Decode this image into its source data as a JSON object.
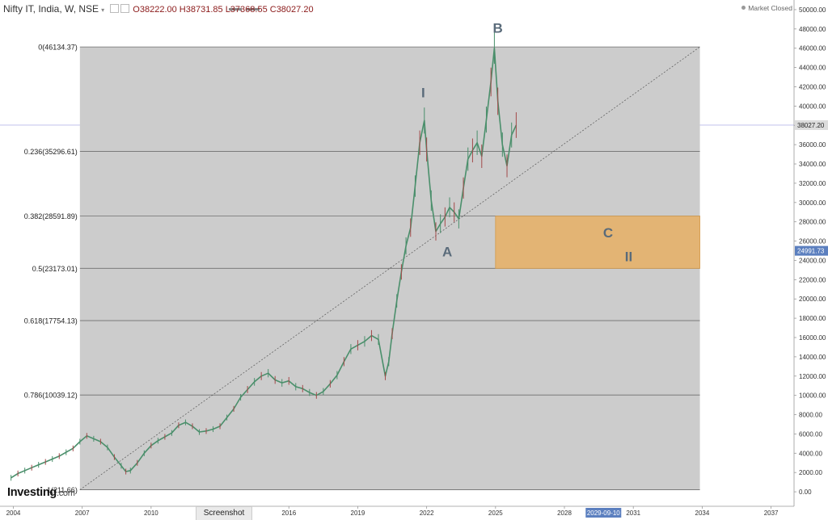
{
  "header": {
    "symbol": "Nifty IT, India, W, NSE",
    "caret": "▾",
    "open": "O38222.00",
    "high": "H38731.85",
    "low": "L37368.55",
    "close": "C38027.20"
  },
  "status": {
    "market": "Market Closed"
  },
  "brand": {
    "name": "Investing",
    "suffix": ".com"
  },
  "toolbar": {
    "screenshot_label": "Screenshot"
  },
  "colors": {
    "fib_region": "#cccccc",
    "zone_fill": "#e5b16a",
    "price_tag": "#5b7fbf",
    "label_text": "#5a6b7a",
    "candle": "#4a8f6b"
  },
  "chart_data": {
    "type": "line",
    "title": "Nifty IT, India, W, NSE",
    "x_range": [
      "2003-06",
      "2038-01"
    ],
    "ylim": [
      -1500,
      51000
    ],
    "y_ticks": [
      0,
      2000,
      4000,
      6000,
      8000,
      10000,
      12000,
      14000,
      16000,
      18000,
      20000,
      22000,
      24000,
      26000,
      28000,
      30000,
      32000,
      34000,
      36000,
      38000,
      40000,
      42000,
      44000,
      46000,
      48000,
      50000
    ],
    "y_tick_labels": [
      "0.00",
      "2000.00",
      "4000.00",
      "6000.00",
      "8000.00",
      "10000.00",
      "12000.00",
      "14000.00",
      "16000.00",
      "18000.00",
      "20000.00",
      "22000.00",
      "24000.00",
      "26000.00",
      "28000.00",
      "30000.00",
      "32000.00",
      "34000.00",
      "36000.00",
      "38000.00",
      "40000.00",
      "42000.00",
      "44000.00",
      "46000.00",
      "48000.00",
      "50000.00"
    ],
    "x_ticks": [
      {
        "label": "2004",
        "t": 2004.0
      },
      {
        "label": "2007",
        "t": 2007.0
      },
      {
        "label": "2010",
        "t": 2010.0
      },
      {
        "label": "2013",
        "t": 2013.0
      },
      {
        "label": "2016",
        "t": 2016.0
      },
      {
        "label": "2019",
        "t": 2019.0
      },
      {
        "label": "2022",
        "t": 2022.0
      },
      {
        "label": "2025",
        "t": 2025.0
      },
      {
        "label": "2028",
        "t": 2028.0
      },
      {
        "label": "2031",
        "t": 2031.0
      },
      {
        "label": "2034",
        "t": 2034.0
      },
      {
        "label": "2037",
        "t": 2037.0
      }
    ],
    "cursor_date": "2029-09-10",
    "cursor_t": 2029.7,
    "last_price": {
      "value": 38027.2,
      "label": "38027.20"
    },
    "crosshair_price": {
      "value": 24991.73,
      "label": "24991.73"
    },
    "series": [
      {
        "t": [
          2003.9,
          2004.2,
          2004.5,
          2004.8,
          2005.1,
          2005.4,
          2005.7,
          2006.0,
          2006.3,
          2006.6,
          2006.9,
          2007.2,
          2007.5,
          2007.8,
          2008.1,
          2008.4,
          2008.7,
          2008.9,
          2009.1,
          2009.4,
          2009.7,
          2010.0,
          2010.3,
          2010.6,
          2010.9,
          2011.2,
          2011.5,
          2011.8,
          2012.1,
          2012.4,
          2012.7,
          2013.0,
          2013.3,
          2013.6,
          2013.9,
          2014.2,
          2014.5,
          2014.8,
          2015.1,
          2015.4,
          2015.7,
          2016.0,
          2016.3,
          2016.6,
          2016.9,
          2017.2,
          2017.5,
          2017.8,
          2018.1,
          2018.4,
          2018.7,
          2019.0,
          2019.3,
          2019.6,
          2019.9,
          2020.2,
          2020.35,
          2020.5,
          2020.7,
          2020.9,
          2021.1,
          2021.3,
          2021.5,
          2021.7,
          2021.9,
          2022.0,
          2022.2,
          2022.4,
          2022.6,
          2022.8,
          2023.0,
          2023.2,
          2023.4,
          2023.6,
          2023.8,
          2024.0,
          2024.2,
          2024.4,
          2024.6,
          2024.8,
          2024.95,
          2025.1,
          2025.3,
          2025.5,
          2025.7,
          2025.9
        ],
        "y": [
          1450,
          1900,
          2200,
          2500,
          2800,
          3100,
          3400,
          3700,
          4100,
          4500,
          5200,
          5800,
          5500,
          5200,
          4600,
          3600,
          2700,
          2100,
          2200,
          3000,
          4000,
          4800,
          5300,
          5700,
          6100,
          6900,
          7200,
          6800,
          6200,
          6300,
          6500,
          6800,
          7700,
          8600,
          9800,
          10600,
          11400,
          12000,
          12300,
          11600,
          11300,
          11500,
          10900,
          10700,
          10300,
          10000,
          10400,
          11200,
          12100,
          13500,
          14800,
          15200,
          15600,
          16200,
          15800,
          12000,
          13500,
          16400,
          19800,
          22800,
          25500,
          27400,
          31700,
          36200,
          38500,
          35500,
          30200,
          27000,
          27800,
          28500,
          29500,
          29000,
          28300,
          31500,
          34500,
          35400,
          36200,
          34800,
          38600,
          42500,
          46000,
          40500,
          36000,
          33800,
          37000,
          38027
        ]
      }
    ],
    "fib_levels": [
      {
        "ratio": "0",
        "value": 46134.37,
        "label": "0(46134.37)"
      },
      {
        "ratio": "0.236",
        "value": 35296.61,
        "label": "0.236(35296.61)"
      },
      {
        "ratio": "0.382",
        "value": 28591.89,
        "label": "0.382(28591.89)"
      },
      {
        "ratio": "0.5",
        "value": 23173.01,
        "label": "0.5(23173.01)"
      },
      {
        "ratio": "0.618",
        "value": 17754.13,
        "label": "0.618(17754.13)"
      },
      {
        "ratio": "0.786",
        "value": 10039.12,
        "label": "0.786(10039.12)"
      },
      {
        "ratio": "1",
        "value": 211.66,
        "label": "1(211.66)"
      }
    ],
    "fib_region": {
      "t_start": 2006.9,
      "t_end": 2033.9
    },
    "trend_line": {
      "t1": 2006.9,
      "y1": 211.66,
      "t2": 2033.9,
      "y2": 46134.37
    },
    "zone": {
      "t_start": 2025.0,
      "t_end": 2033.9,
      "y_low": 23173.01,
      "y_high": 28591.89
    },
    "wave_labels": [
      {
        "text": "B",
        "t": 2025.1,
        "y": 47600
      },
      {
        "text": "I",
        "t": 2021.85,
        "y": 40900
      },
      {
        "text": "A",
        "t": 2022.9,
        "y": 24400
      },
      {
        "text": "C",
        "t": 2029.9,
        "y": 26400
      },
      {
        "text": "II",
        "t": 2030.8,
        "y": 23900
      }
    ]
  }
}
